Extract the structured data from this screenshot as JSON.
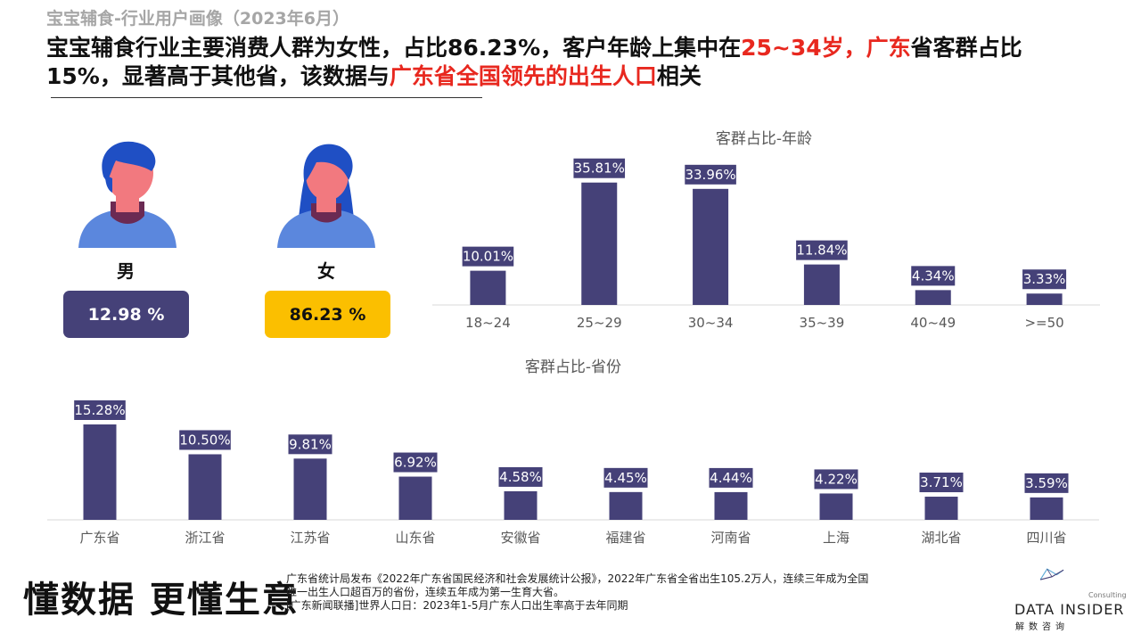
{
  "header": {
    "subtitle": "宝宝辅食-行业用户画像（2023年6月）",
    "headline_parts": [
      {
        "text": "宝宝辅食行业主要消费人群为女性，占比86.23%，客户年龄上集中在",
        "hl": false
      },
      {
        "text": "25~34岁，广东",
        "hl": true
      },
      {
        "text": "省客群占比15%，显著高于其他省，该数据与",
        "hl": false
      },
      {
        "text": "广东省全国领先的出生人口",
        "hl": true
      },
      {
        "text": "相关",
        "hl": false
      }
    ],
    "highlight_color": "#e8281f"
  },
  "gender": {
    "male": {
      "label": "男",
      "value": "12.98 %",
      "icon": "male-person-icon",
      "color": "#454178"
    },
    "female": {
      "label": "女",
      "value": "86.23 %",
      "icon": "female-person-icon",
      "color": "#fbbf00"
    }
  },
  "chart_data": [
    {
      "type": "bar",
      "title": "客群占比-年龄",
      "categories": [
        "18~24",
        "25~29",
        "30~34",
        "35~39",
        "40~49",
        ">=50"
      ],
      "values": [
        10.01,
        35.81,
        33.96,
        11.84,
        4.34,
        3.33
      ],
      "value_labels": [
        "10.01%",
        "35.81%",
        "33.96%",
        "11.84%",
        "4.34%",
        "3.33%"
      ],
      "unit": "%",
      "ylim": [
        0,
        36
      ],
      "grid": false,
      "legend": "none",
      "bar_color": "#454178"
    },
    {
      "type": "bar",
      "title": "客群占比-省份",
      "categories": [
        "广东省",
        "浙江省",
        "江苏省",
        "山东省",
        "安徽省",
        "福建省",
        "河南省",
        "上海",
        "湖北省",
        "四川省"
      ],
      "values": [
        15.28,
        10.5,
        9.81,
        6.92,
        4.58,
        4.45,
        4.44,
        4.22,
        3.71,
        3.59
      ],
      "value_labels": [
        "15.28%",
        "10.50%",
        "9.81%",
        "6.92%",
        "4.58%",
        "4.45%",
        "4.44%",
        "4.22%",
        "3.71%",
        "3.59%"
      ],
      "unit": "%",
      "ylim": [
        0,
        15.28
      ],
      "grid": false,
      "legend": "none",
      "bar_color": "#454178"
    }
  ],
  "footer": {
    "slogan": "懂数据 更懂生意",
    "notes": [
      "广东省统计局发布《2022年广东省国民经济和社会发展统计公报》，2022年广东省全省出生105.2万人，连续三年成为全国",
      "唯一出生人口超百万的省份，连续五年成为第一生育大省。",
      "[广东新闻联播]世界人口日：2023年1-5月广东人口出生率高于去年同期"
    ],
    "logo_consulting": "Consulting",
    "logo_name": "DATA INSIDER",
    "logo_cn": "解数咨询"
  }
}
